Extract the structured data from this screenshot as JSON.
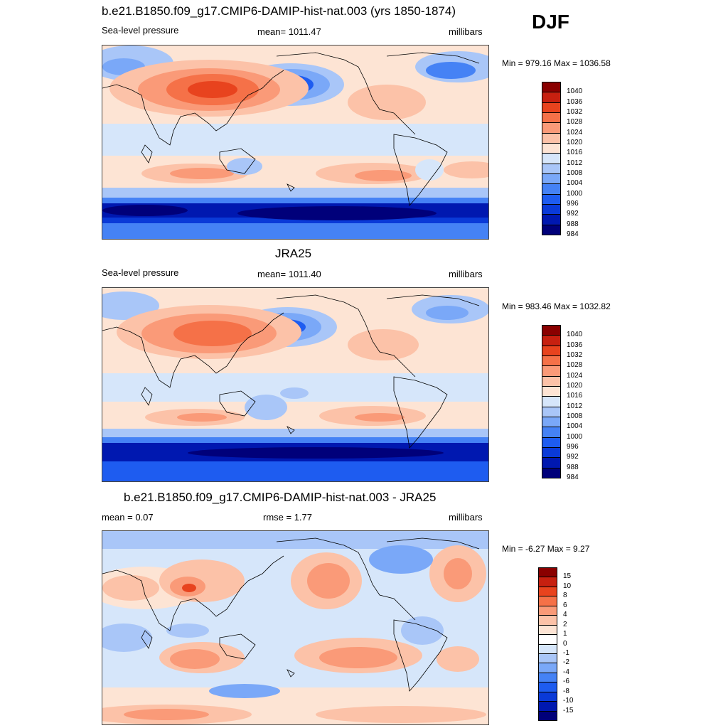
{
  "season": "DJF",
  "colors": {
    "abs_scale": [
      "#00007a",
      "#0018b0",
      "#0a3ad8",
      "#1e5cf0",
      "#4582f5",
      "#7aa8f8",
      "#a9c6f8",
      "#d6e6fa",
      "#fde4d4",
      "#fcc2a8",
      "#fa9a78",
      "#f57148",
      "#e8431e",
      "#c72010",
      "#8a0000"
    ],
    "diff_scale": [
      "#00007a",
      "#0018b0",
      "#0a3ad8",
      "#1e5cf0",
      "#4582f5",
      "#7aa8f8",
      "#a9c6f8",
      "#d6e6fa",
      "#ffffff",
      "#fde4d4",
      "#fcc2a8",
      "#fa9a78",
      "#f57148",
      "#e8431e",
      "#c72010",
      "#8a0000"
    ]
  },
  "panels": [
    {
      "title": "b.e21.B1850.f09_g17.CMIP6-DAMIP-hist-nat.003 (yrs 1850-1874)",
      "left_label": "Sea-level pressure",
      "center_label": "mean= 1011.47",
      "right_label": "millibars",
      "minmax": "Min = 979.16 Max = 1036.58",
      "colorbar_labels": [
        "1040",
        "1036",
        "1032",
        "1028",
        "1024",
        "1020",
        "1016",
        "1012",
        "1008",
        "1004",
        "1000",
        "996",
        "992",
        "988",
        "984"
      ]
    },
    {
      "title": "JRA25",
      "left_label": "Sea-level pressure",
      "center_label": "mean= 1011.40",
      "right_label": "millibars",
      "minmax": "Min = 983.46 Max = 1032.82",
      "colorbar_labels": [
        "1040",
        "1036",
        "1032",
        "1028",
        "1024",
        "1020",
        "1016",
        "1012",
        "1008",
        "1004",
        "1000",
        "996",
        "992",
        "988",
        "984"
      ]
    },
    {
      "title": "b.e21.B1850.f09_g17.CMIP6-DAMIP-hist-nat.003 - JRA25",
      "left_label": "mean =   0.07",
      "center_label": "rmse =   1.77",
      "right_label": "millibars",
      "minmax": "Min =  -6.27 Max =   9.27",
      "colorbar_labels": [
        "15",
        "10",
        "8",
        "6",
        "4",
        "2",
        "1",
        "0",
        "-1",
        "-2",
        "-4",
        "-6",
        "-8",
        "-10",
        "-15"
      ]
    }
  ]
}
